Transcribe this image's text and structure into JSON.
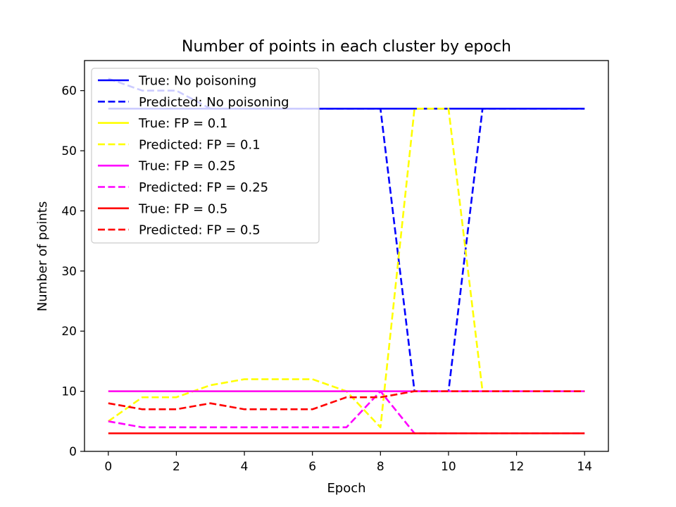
{
  "chart_data": {
    "type": "line",
    "title": "Number of points in each cluster by epoch",
    "xlabel": "Epoch",
    "ylabel": "Number of points",
    "xlim": [
      -0.7,
      14.7
    ],
    "ylim": [
      0,
      65
    ],
    "xticks": [
      0,
      2,
      4,
      6,
      8,
      10,
      12,
      14
    ],
    "yticks": [
      0,
      10,
      20,
      30,
      40,
      50,
      60
    ],
    "grid": false,
    "legend_position": "upper-left",
    "x": [
      0,
      1,
      2,
      3,
      4,
      5,
      6,
      7,
      8,
      9,
      10,
      11,
      12,
      13,
      14
    ],
    "series": [
      {
        "name": "True: No poisoning",
        "color": "#0000ff",
        "dash": "solid",
        "values": [
          57,
          57,
          57,
          57,
          57,
          57,
          57,
          57,
          57,
          57,
          57,
          57,
          57,
          57,
          57
        ]
      },
      {
        "name": "Predicted: No poisoning",
        "color": "#0000ff",
        "dash": "dashed",
        "values": [
          62,
          60,
          60,
          57,
          57,
          57,
          57,
          57,
          57,
          10,
          10,
          57,
          57,
          57,
          57
        ]
      },
      {
        "name": "True: FP = 0.1",
        "color": "#ffff00",
        "dash": "solid",
        "values": [
          10,
          10,
          10,
          10,
          10,
          10,
          10,
          10,
          10,
          10,
          10,
          10,
          10,
          10,
          10
        ]
      },
      {
        "name": "Predicted: FP = 0.1",
        "color": "#ffff00",
        "dash": "dashed",
        "values": [
          5,
          9,
          9,
          11,
          12,
          12,
          12,
          10,
          4,
          57,
          57,
          10,
          10,
          10,
          10
        ]
      },
      {
        "name": "True: FP = 0.25",
        "color": "#ff00ff",
        "dash": "solid",
        "values": [
          10,
          10,
          10,
          10,
          10,
          10,
          10,
          10,
          10,
          10,
          10,
          10,
          10,
          10,
          10
        ]
      },
      {
        "name": "Predicted: FP = 0.25",
        "color": "#ff00ff",
        "dash": "dashed",
        "values": [
          5,
          4,
          4,
          4,
          4,
          4,
          4,
          4,
          10,
          3,
          3,
          3,
          3,
          3,
          3
        ]
      },
      {
        "name": "True: FP = 0.5",
        "color": "#ff0000",
        "dash": "solid",
        "values": [
          3,
          3,
          3,
          3,
          3,
          3,
          3,
          3,
          3,
          3,
          3,
          3,
          3,
          3,
          3
        ]
      },
      {
        "name": "Predicted: FP = 0.5",
        "color": "#ff0000",
        "dash": "dashed",
        "values": [
          8,
          7,
          7,
          8,
          7,
          7,
          7,
          9,
          9,
          10,
          10,
          10,
          10,
          10,
          10
        ]
      }
    ]
  }
}
